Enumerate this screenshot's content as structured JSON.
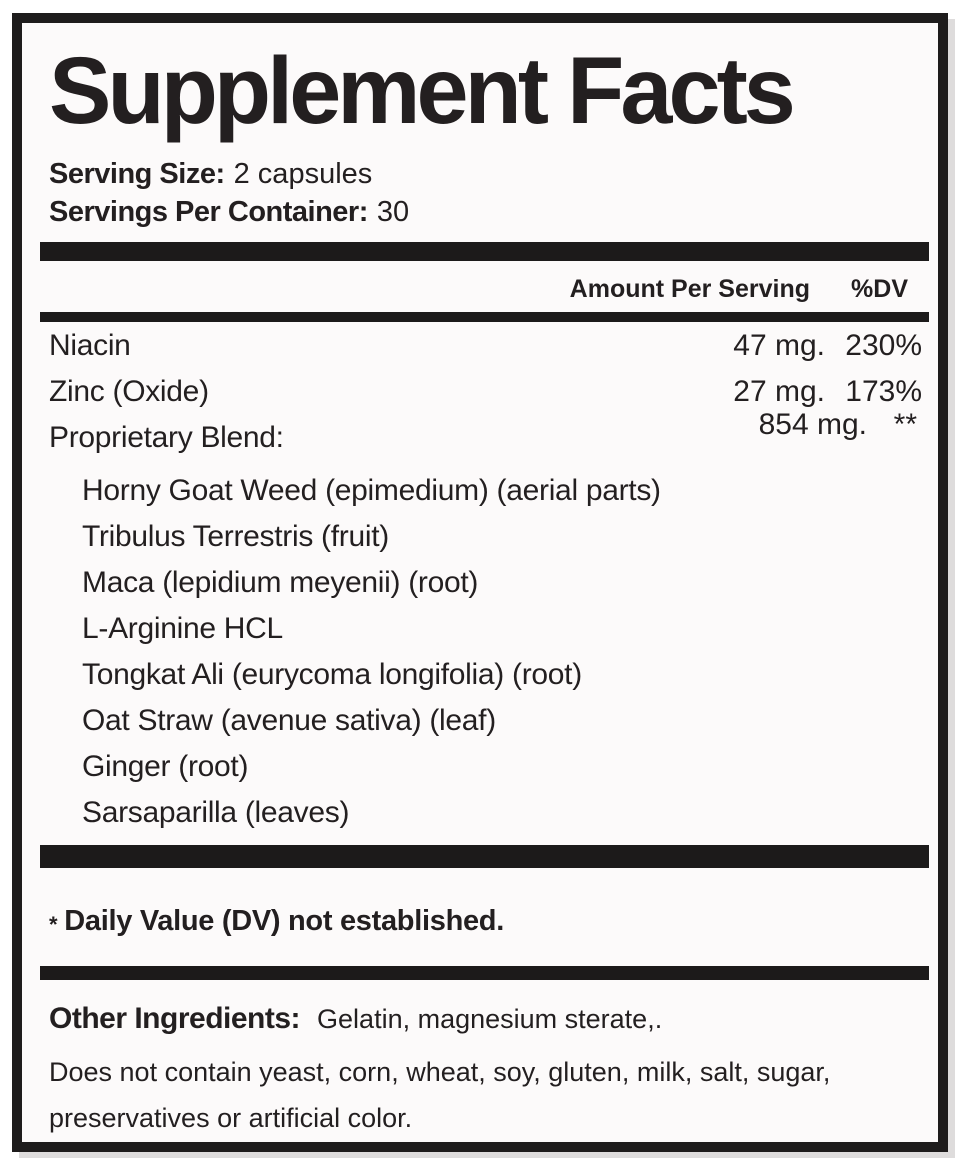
{
  "label": {
    "title": "Supplement Facts",
    "serving_size_label": "Serving Size:",
    "serving_size_value": "2 capsules",
    "servings_per_container_label": "Servings Per Container:",
    "servings_per_container_value": "30",
    "table_header": {
      "amount": "Amount Per Serving",
      "dv": "%DV"
    },
    "rows": [
      {
        "name": "Niacin",
        "amount": "47 mg.",
        "dv": "230%"
      },
      {
        "name": "Zinc (Oxide)",
        "amount": "27 mg.",
        "dv": "173%"
      },
      {
        "name": "Proprietary Blend:",
        "amount": "854 mg.",
        "dv": "**"
      }
    ],
    "blend": [
      "Horny Goat Weed (epimedium) (aerial parts)",
      "Tribulus Terrestris (fruit)",
      "Maca (lepidium meyenii) (root)",
      "L-Arginine HCL",
      "Tongkat Ali (eurycoma longifolia) (root)",
      "Oat Straw (avenue sativa) (leaf)",
      "Ginger (root)",
      "Sarsaparilla (leaves)"
    ],
    "footnote_asterisk": "*",
    "footnote_text": "Daily Value (DV) not established.",
    "other_ingredients_label": "Other Ingredients:",
    "other_ingredients_value": "Gelatin, magnesium sterate,.",
    "disclaimer_line1": "Does not contain yeast, corn, wheat, soy, gluten, milk, salt, sugar,",
    "disclaimer_line2": "preservatives or artificial color.",
    "colors": {
      "text": "#231f20",
      "bar": "#1c1a1a",
      "border": "#1e1c1c",
      "background": "#fcfafa"
    }
  }
}
